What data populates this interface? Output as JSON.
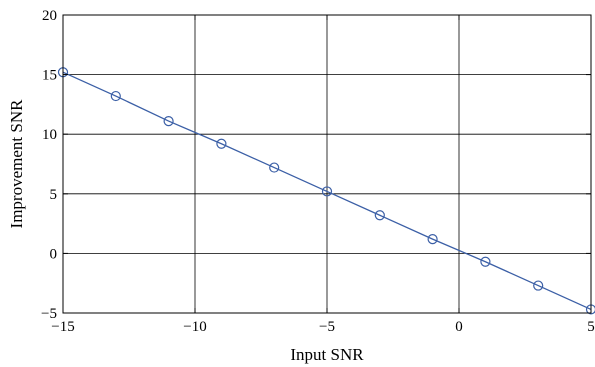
{
  "chart_data": {
    "type": "line",
    "title": "",
    "xlabel": "Input SNR",
    "ylabel": "Improvement SNR",
    "xlim": [
      -15,
      5
    ],
    "ylim": [
      -5,
      20
    ],
    "xticks": [
      -15,
      -10,
      -5,
      0,
      5
    ],
    "yticks": [
      -5,
      0,
      5,
      10,
      15,
      20
    ],
    "xtick_labels": [
      "−15",
      "−10",
      "−5",
      "0",
      "5"
    ],
    "ytick_labels": [
      "−5",
      "0",
      "5",
      "10",
      "15",
      "20"
    ],
    "grid": true,
    "series": [
      {
        "color": "#3b5fa6",
        "marker": "circle",
        "x": [
          -15,
          -13,
          -11,
          -9,
          -7,
          -5,
          -3,
          -1,
          1,
          3,
          5
        ],
        "y": [
          15.2,
          13.2,
          11.1,
          9.2,
          7.2,
          5.2,
          3.2,
          1.2,
          -0.7,
          -2.7,
          -4.7
        ]
      }
    ]
  }
}
